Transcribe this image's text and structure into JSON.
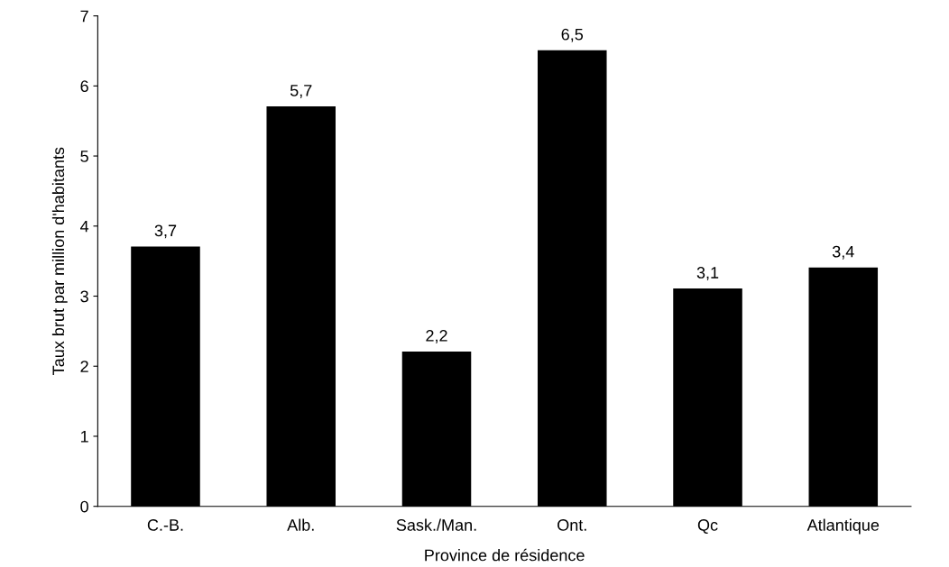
{
  "chart_data": {
    "type": "bar",
    "xlabel": "Province de résidence",
    "ylabel": "Taux brut par million d'habitants",
    "categories": [
      "C.-B.",
      "Alb.",
      "Sask./Man.",
      "Ont.",
      "Qc",
      "Atlantique"
    ],
    "values": [
      3.7,
      5.7,
      2.2,
      6.5,
      3.1,
      3.4
    ],
    "value_labels": [
      "3,7",
      "5,7",
      "2,2",
      "6,5",
      "3,1",
      "3,4"
    ],
    "color": "#000000",
    "ylim": [
      0,
      7
    ],
    "yticks": [
      0,
      1,
      2,
      3,
      4,
      5,
      6,
      7
    ],
    "grid": false,
    "legend": false
  }
}
